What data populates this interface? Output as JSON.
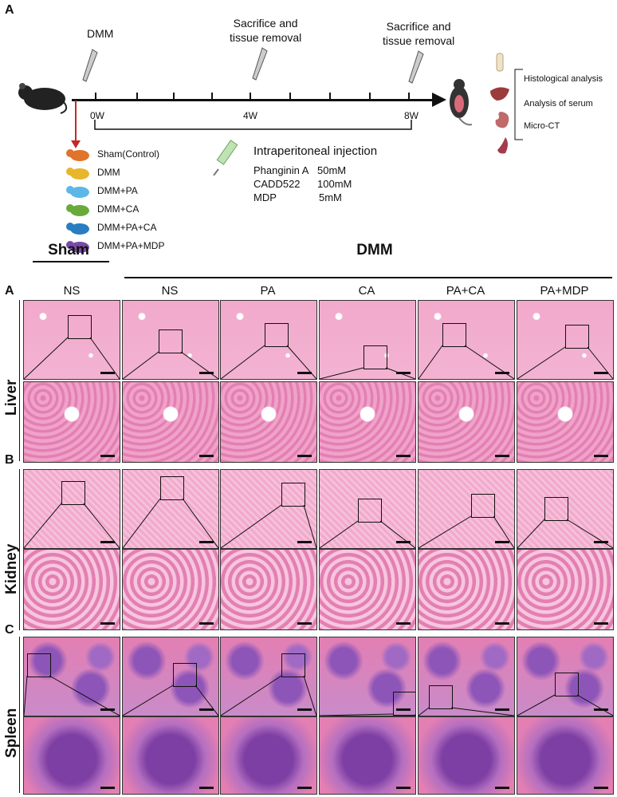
{
  "panel_top_label": "A",
  "timeline": {
    "events": [
      {
        "text": "DMM"
      },
      {
        "text": "Sacrifice and\ntissue removal"
      },
      {
        "text": "Sacrifice and\ntissue removal"
      }
    ],
    "weeks": [
      "0W",
      "4W",
      "8W"
    ],
    "injection": {
      "title": "Intraperitoneal injection",
      "drugs": [
        {
          "name": "Phanginin A",
          "dose": "50mM"
        },
        {
          "name": "CADD522",
          "dose": "100mM"
        },
        {
          "name": "MDP",
          "dose": "5mM"
        }
      ]
    },
    "groups": [
      {
        "label": "Sham(Control)",
        "color": "#e0742a"
      },
      {
        "label": "DMM",
        "color": "#e8b62b"
      },
      {
        "label": "DMM+PA",
        "color": "#5cb8e6"
      },
      {
        "label": "DMM+CA",
        "color": "#6aaa3a"
      },
      {
        "label": "DMM+PA+CA",
        "color": "#2a7dc0"
      },
      {
        "label": "DMM+PA+MDP",
        "color": "#7b4aa8"
      }
    ],
    "analyses": [
      "Histological analysis",
      "Analysis of  serum",
      "Micro-CT"
    ]
  },
  "histology": {
    "group_headers": {
      "sham": "Sham",
      "dmm": "DMM"
    },
    "columns": [
      "NS",
      "NS",
      "PA",
      "CA",
      "PA+CA",
      "PA+MDP"
    ],
    "panels": [
      {
        "letter": "A",
        "organ": "Liver"
      },
      {
        "letter": "B",
        "organ": "Kidney"
      },
      {
        "letter": "C",
        "organ": "Spleen"
      }
    ]
  },
  "colors": {
    "he_light": "#f2a9cc",
    "he_dark": "#e37fb3",
    "spleen_purple": "#7d3fa3",
    "arrow_red": "#c62828"
  }
}
